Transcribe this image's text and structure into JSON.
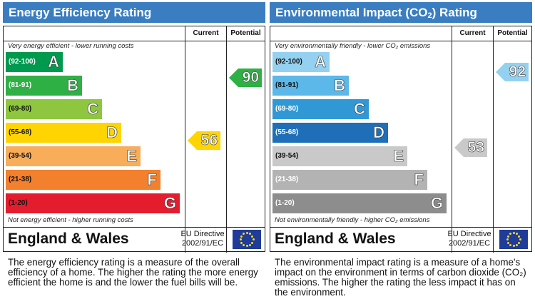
{
  "energy": {
    "title": "Energy Efficiency Rating",
    "col_current": "Current",
    "col_potential": "Potential",
    "top_note": "Very energy efficient - lower running costs",
    "bottom_note": "Not energy efficient - higher running costs",
    "bands": [
      {
        "range": "(92-100)",
        "letter": "A",
        "color": "#009a4f"
      },
      {
        "range": "(81-91)",
        "letter": "B",
        "color": "#2fb045"
      },
      {
        "range": "(69-80)",
        "letter": "C",
        "color": "#8ec63f"
      },
      {
        "range": "(55-68)",
        "letter": "D",
        "color": "#ffd400"
      },
      {
        "range": "(39-54)",
        "letter": "E",
        "color": "#f7ad5a"
      },
      {
        "range": "(21-38)",
        "letter": "F",
        "color": "#f3802c"
      },
      {
        "range": "(1-20)",
        "letter": "G",
        "color": "#e31d2e"
      }
    ],
    "current": {
      "value": "56",
      "band": "D",
      "color": "#ffd400"
    },
    "potential": {
      "value": "90",
      "band": "B",
      "color": "#2fb045"
    },
    "country": "England & Wales",
    "directive": "EU Directive 2002/91/EC",
    "description": "The energy efficiency rating is a measure of the overall efficiency of a home. The higher the rating the more energy efficient the home is and the lower the fuel bills will be."
  },
  "environment": {
    "title_main": "Environmental Impact (CO",
    "title_sub": "2",
    "title_end": ") Rating",
    "col_current": "Current",
    "col_potential": "Potential",
    "top_note": "Very environmentally friendly - lower CO₂ emissions",
    "bottom_note": "Not environmentally friendly - higher CO₂ emissions",
    "bands": [
      {
        "range": "(92-100)",
        "letter": "A",
        "color": "#94d1f0"
      },
      {
        "range": "(81-91)",
        "letter": "B",
        "color": "#5cb8e8"
      },
      {
        "range": "(69-80)",
        "letter": "C",
        "color": "#3198d6"
      },
      {
        "range": "(55-68)",
        "letter": "D",
        "color": "#1f6fb8"
      },
      {
        "range": "(39-54)",
        "letter": "E",
        "color": "#c9c9c9"
      },
      {
        "range": "(21-38)",
        "letter": "F",
        "color": "#b3b3b3"
      },
      {
        "range": "(1-20)",
        "letter": "G",
        "color": "#8d8d8d"
      }
    ],
    "current": {
      "value": "53",
      "band": "E",
      "color": "#c9c9c9"
    },
    "potential": {
      "value": "92",
      "band": "A",
      "color": "#94d1f0"
    },
    "country": "England & Wales",
    "directive": "EU Directive 2002/91/EC",
    "description": "The environmental impact rating is a measure of a home's impact on the environment in terms of carbon dioxide (CO₂) emissions. The higher the rating the less impact it has on the environment."
  }
}
